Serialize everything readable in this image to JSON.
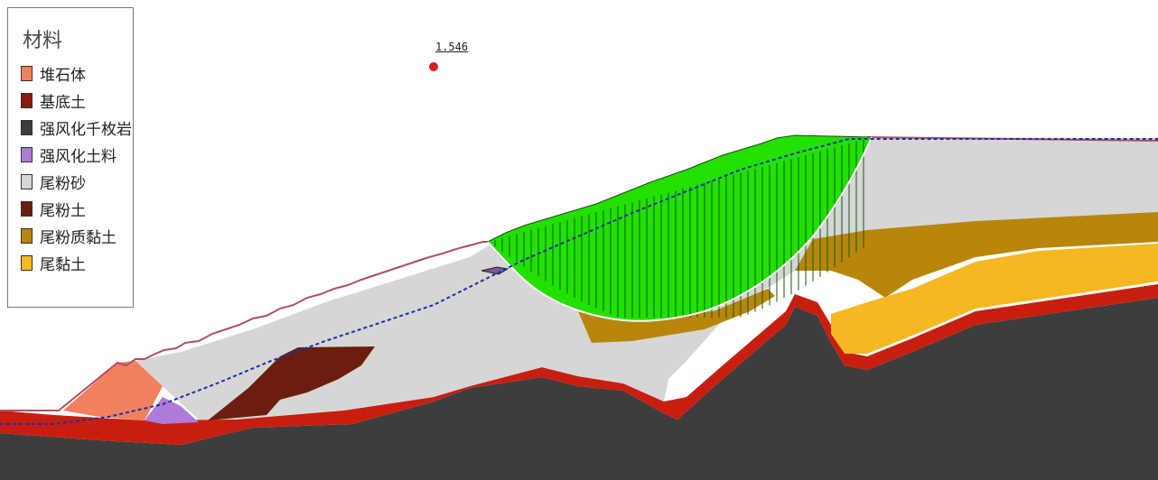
{
  "legend": {
    "title": "材料",
    "items": [
      {
        "label": "堆石体",
        "color": "#f08060"
      },
      {
        "label": "基底土",
        "color": "#8b1a10"
      },
      {
        "label": "强风化千枚岩",
        "color": "#3d3d3d"
      },
      {
        "label": "强风化土料",
        "color": "#b07ad8"
      },
      {
        "label": "尾粉砂",
        "color": "#d6d6d6"
      },
      {
        "label": "尾粉土",
        "color": "#6b1e0e"
      },
      {
        "label": "尾粉质黏土",
        "color": "#b8860b"
      },
      {
        "label": "尾黏土",
        "color": "#f5b820"
      }
    ]
  },
  "factor_of_safety": "1.546",
  "colors": {
    "slip_surface": "#22e000",
    "phreatic_line": "#1a2fa8",
    "ground_line": "#b05060",
    "red_layer": "#c81e10"
  }
}
